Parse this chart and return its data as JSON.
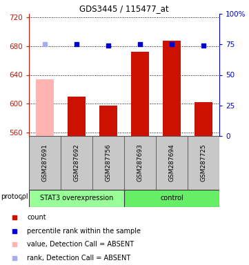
{
  "title": "GDS3445 / 115477_at",
  "samples": [
    "GSM287691",
    "GSM287692",
    "GSM287756",
    "GSM287693",
    "GSM287694",
    "GSM287725"
  ],
  "bar_values": [
    634,
    610,
    597,
    672,
    688,
    602
  ],
  "bar_colors": [
    "#ffb3b3",
    "#cc1100",
    "#cc1100",
    "#cc1100",
    "#cc1100",
    "#cc1100"
  ],
  "rank_values": [
    75,
    75,
    74,
    75,
    75,
    74
  ],
  "rank_colors": [
    "#aaaaee",
    "#0000cc",
    "#0000cc",
    "#0000cc",
    "#0000cc",
    "#0000cc"
  ],
  "ylim_left": [
    555,
    725
  ],
  "ylim_right": [
    0,
    100
  ],
  "yticks_left": [
    560,
    600,
    640,
    680,
    720
  ],
  "yticks_right": [
    0,
    25,
    50,
    75,
    100
  ],
  "protocol_groups": [
    {
      "label": "STAT3 overexpression",
      "span": [
        0,
        3
      ],
      "color": "#99ff99"
    },
    {
      "label": "control",
      "span": [
        3,
        6
      ],
      "color": "#66ee66"
    }
  ],
  "legend_items": [
    {
      "color": "#cc1100",
      "label": "count"
    },
    {
      "color": "#0000cc",
      "label": "percentile rank within the sample"
    },
    {
      "color": "#ffb3b3",
      "label": "value, Detection Call = ABSENT"
    },
    {
      "color": "#aaaaee",
      "label": "rank, Detection Call = ABSENT"
    }
  ],
  "bar_width": 0.55,
  "left_axis_color": "#cc1100",
  "right_axis_color": "#0000cc",
  "sample_box_color": "#c8c8c8",
  "sample_box_edge": "#888888"
}
